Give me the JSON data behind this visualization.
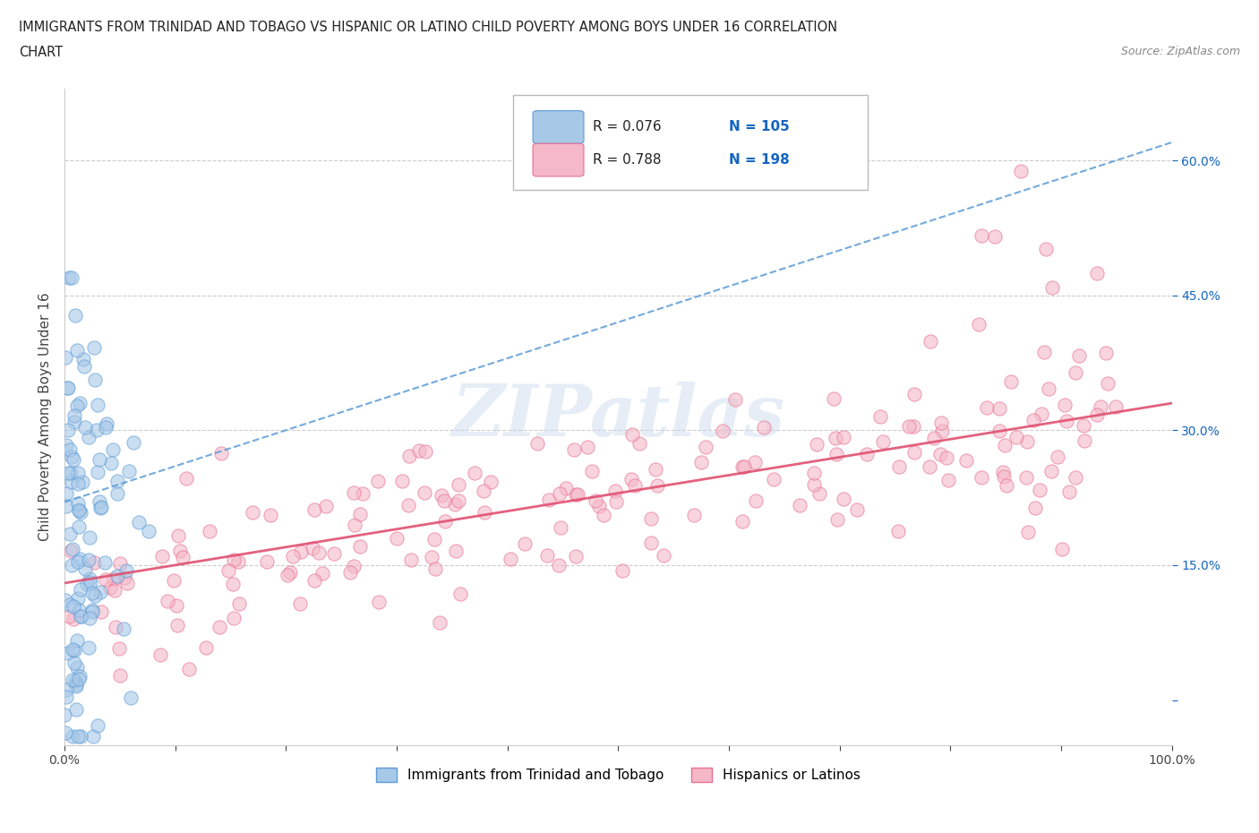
{
  "title_line1": "IMMIGRANTS FROM TRINIDAD AND TOBAGO VS HISPANIC OR LATINO CHILD POVERTY AMONG BOYS UNDER 16 CORRELATION",
  "title_line2": "CHART",
  "source_text": "Source: ZipAtlas.com",
  "ylabel": "Child Poverty Among Boys Under 16",
  "x_ticks": [
    0.0,
    0.1,
    0.2,
    0.3,
    0.4,
    0.5,
    0.6,
    0.7,
    0.8,
    0.9,
    1.0
  ],
  "y_ticks": [
    0.0,
    0.15,
    0.3,
    0.45,
    0.6
  ],
  "xlim": [
    0.0,
    1.0
  ],
  "ylim": [
    -0.05,
    0.68
  ],
  "blue_scatter_color": "#a8c8e8",
  "blue_scatter_edge": "#5b9bd5",
  "pink_scatter_color": "#f4b8c8",
  "pink_scatter_edge": "#e87090",
  "blue_line_color": "#5b9bd5",
  "pink_line_color": "#e05070",
  "R_blue": 0.076,
  "N_blue": 105,
  "R_pink": 0.788,
  "N_pink": 198,
  "legend_N_color": "#1565c0",
  "watermark": "ZIPatlas",
  "background_color": "#ffffff",
  "grid_color": "#cccccc",
  "blue_trend_x0": 0.0,
  "blue_trend_y0": 0.22,
  "blue_trend_x1": 1.0,
  "blue_trend_y1": 0.62,
  "pink_trend_x0": 0.0,
  "pink_trend_y0": 0.13,
  "pink_trend_x1": 1.0,
  "pink_trend_y1": 0.33
}
